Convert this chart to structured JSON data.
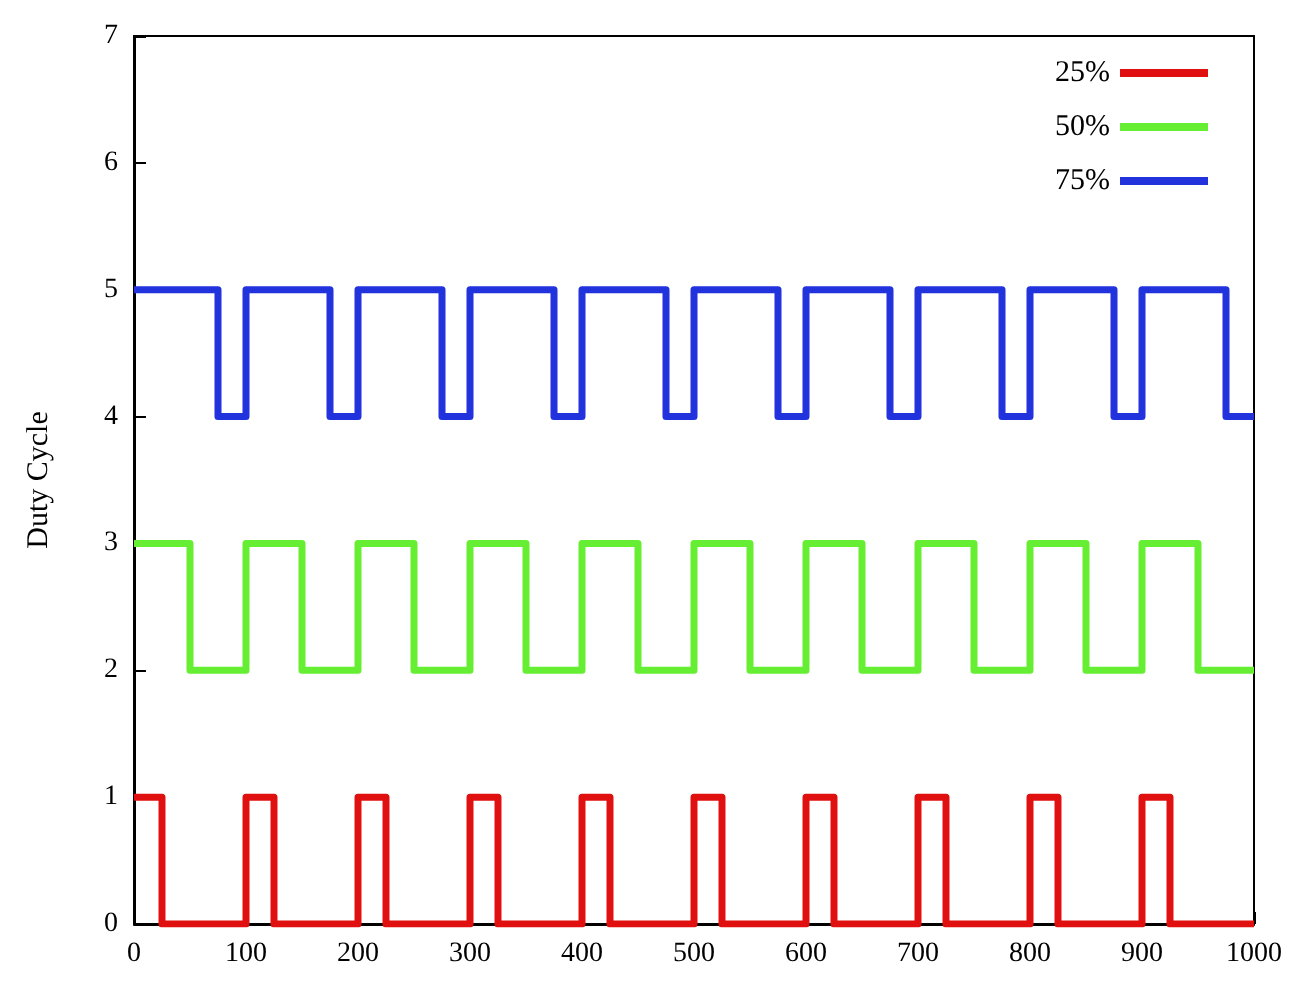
{
  "chart_data": {
    "type": "step",
    "ylabel": "Duty Cycle",
    "xlim": [
      0,
      1000
    ],
    "xticks": [
      0,
      100,
      200,
      300,
      400,
      500,
      600,
      700,
      800,
      900,
      1000
    ],
    "ylim": [
      0,
      7
    ],
    "yticks": [
      0,
      1,
      2,
      3,
      4,
      5,
      6,
      7
    ],
    "grid": false,
    "legend": "top right",
    "marker": "none",
    "line_style": "solid",
    "series": [
      {
        "name": "25%",
        "color": "#e01010",
        "x": [
          0,
          25,
          100,
          125,
          200,
          225,
          300,
          325,
          400,
          425,
          500,
          525,
          600,
          625,
          700,
          725,
          800,
          825,
          900,
          925,
          1000
        ],
        "values": [
          1,
          0,
          1,
          0,
          1,
          0,
          1,
          0,
          1,
          0,
          1,
          0,
          1,
          0,
          1,
          0,
          1,
          0,
          1,
          0,
          0
        ]
      },
      {
        "name": "50%",
        "color": "#66ee33",
        "x": [
          0,
          50,
          100,
          150,
          200,
          250,
          300,
          350,
          400,
          450,
          500,
          550,
          600,
          650,
          700,
          750,
          800,
          850,
          900,
          950,
          1000
        ],
        "values": [
          3,
          2,
          3,
          2,
          3,
          2,
          3,
          2,
          3,
          2,
          3,
          2,
          3,
          2,
          3,
          2,
          3,
          2,
          3,
          2,
          2
        ]
      },
      {
        "name": "75%",
        "color": "#2233dd",
        "x": [
          0,
          75,
          100,
          175,
          200,
          275,
          300,
          375,
          400,
          475,
          500,
          575,
          600,
          675,
          700,
          775,
          800,
          875,
          900,
          975,
          1000
        ],
        "values": [
          5,
          4,
          5,
          4,
          5,
          4,
          5,
          4,
          5,
          4,
          5,
          4,
          5,
          4,
          5,
          4,
          5,
          4,
          5,
          4,
          4
        ]
      }
    ]
  }
}
